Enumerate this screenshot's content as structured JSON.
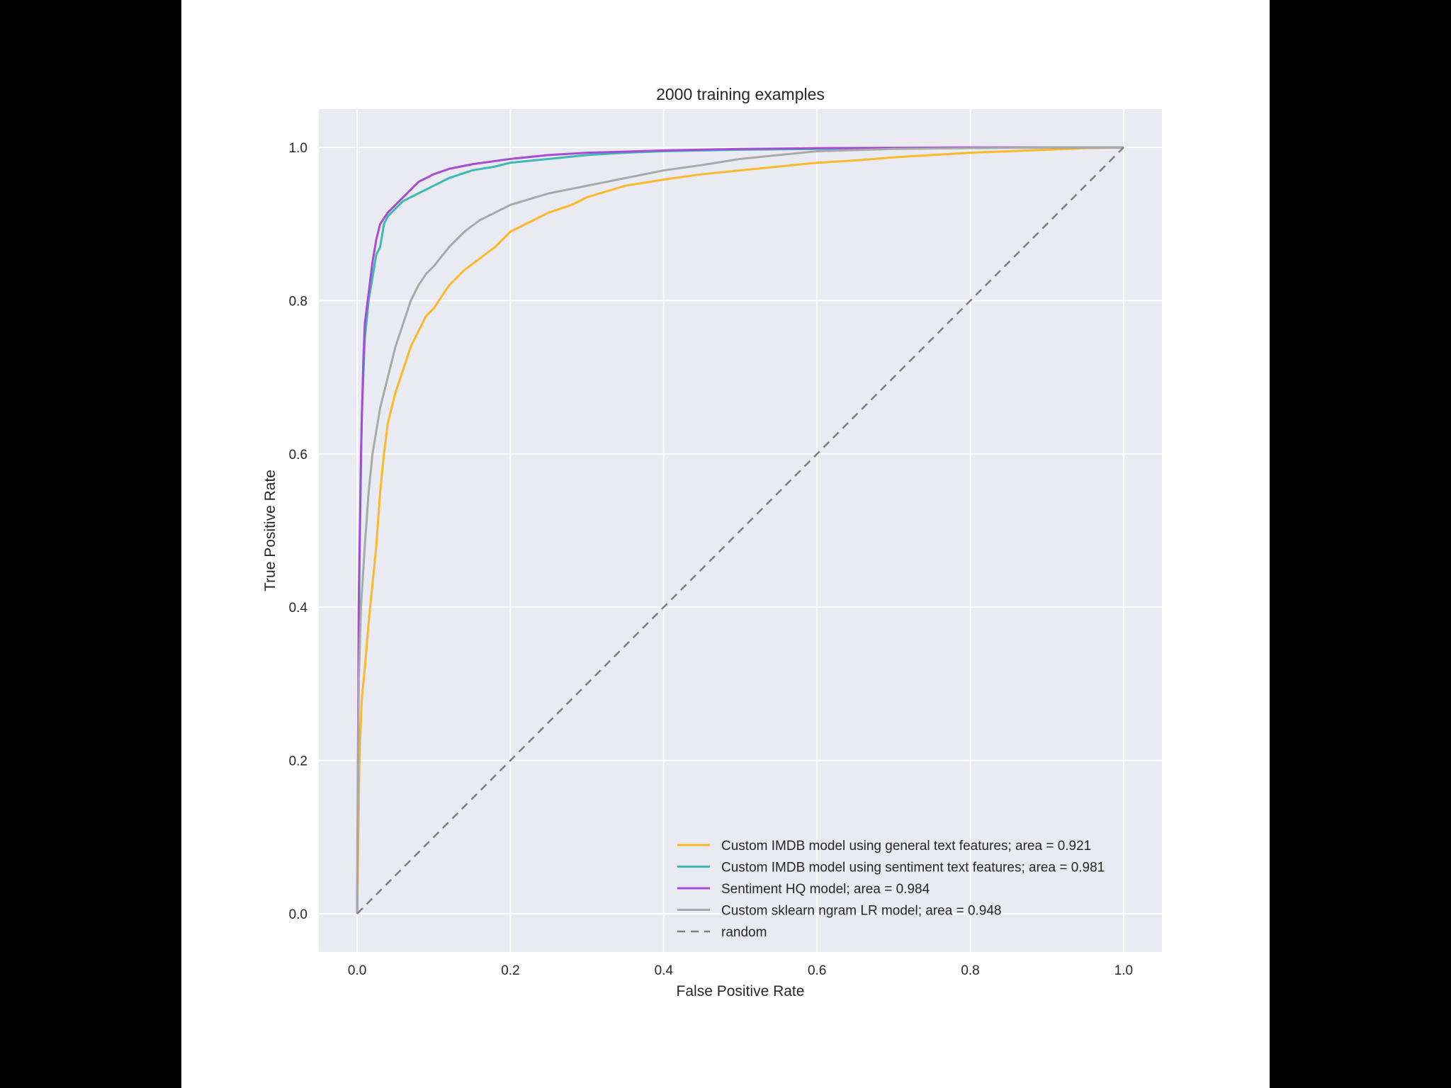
{
  "colors": {
    "page_background": "#000000",
    "figure_background": "#ffffff",
    "plot_background": "#eaeaf2",
    "grid": "#ffffff",
    "text": "#262626"
  },
  "chart_data": {
    "type": "line",
    "title": "2000 training examples",
    "xlabel": "False Positive Rate",
    "ylabel": "True Positive Rate",
    "xlim": [
      -0.05,
      1.05
    ],
    "ylim": [
      -0.05,
      1.05
    ],
    "xticks": [
      "0.0",
      "0.2",
      "0.4",
      "0.6",
      "0.8",
      "1.0"
    ],
    "yticks": [
      "0.0",
      "0.2",
      "0.4",
      "0.6",
      "0.8",
      "1.0"
    ],
    "grid": true,
    "legend_position": "lower-right",
    "series": [
      {
        "name": "Custom IMDB model using general text features; area = 0.921",
        "color": "#fbb829",
        "dash": "solid",
        "x": [
          0,
          0.003,
          0.006,
          0.01,
          0.015,
          0.02,
          0.025,
          0.03,
          0.035,
          0.04,
          0.05,
          0.06,
          0.07,
          0.08,
          0.09,
          0.1,
          0.12,
          0.14,
          0.16,
          0.18,
          0.2,
          0.22,
          0.25,
          0.28,
          0.3,
          0.35,
          0.4,
          0.45,
          0.5,
          0.55,
          0.6,
          0.65,
          0.7,
          0.75,
          0.8,
          0.85,
          0.9,
          0.95,
          1.0
        ],
        "y": [
          0,
          0.2,
          0.28,
          0.32,
          0.38,
          0.43,
          0.48,
          0.55,
          0.6,
          0.64,
          0.68,
          0.71,
          0.74,
          0.76,
          0.78,
          0.79,
          0.82,
          0.84,
          0.855,
          0.87,
          0.89,
          0.9,
          0.915,
          0.925,
          0.935,
          0.95,
          0.958,
          0.965,
          0.97,
          0.975,
          0.98,
          0.983,
          0.987,
          0.99,
          0.993,
          0.995,
          0.997,
          0.999,
          1.0
        ]
      },
      {
        "name": "Custom IMDB model using sentiment text features; area = 0.981",
        "color": "#3dbab2",
        "dash": "solid",
        "x": [
          0,
          0.003,
          0.006,
          0.01,
          0.015,
          0.02,
          0.025,
          0.03,
          0.035,
          0.04,
          0.05,
          0.06,
          0.08,
          0.1,
          0.12,
          0.15,
          0.18,
          0.2,
          0.25,
          0.3,
          0.35,
          0.4,
          0.5,
          0.6,
          0.7,
          0.8,
          0.9,
          1.0
        ],
        "y": [
          0,
          0.45,
          0.65,
          0.75,
          0.8,
          0.83,
          0.86,
          0.87,
          0.9,
          0.91,
          0.92,
          0.93,
          0.94,
          0.95,
          0.96,
          0.97,
          0.975,
          0.98,
          0.985,
          0.99,
          0.993,
          0.995,
          0.997,
          0.998,
          0.999,
          0.9995,
          1.0,
          1.0
        ]
      },
      {
        "name": "Sentiment HQ model; area = 0.984",
        "color": "#a64dd6",
        "dash": "solid",
        "x": [
          0,
          0.002,
          0.005,
          0.008,
          0.01,
          0.015,
          0.02,
          0.025,
          0.03,
          0.04,
          0.05,
          0.06,
          0.07,
          0.08,
          0.1,
          0.12,
          0.15,
          0.2,
          0.25,
          0.3,
          0.4,
          0.5,
          0.6,
          0.7,
          0.8,
          0.9,
          1.0
        ],
        "y": [
          0,
          0.4,
          0.6,
          0.72,
          0.77,
          0.81,
          0.85,
          0.88,
          0.9,
          0.915,
          0.925,
          0.935,
          0.945,
          0.955,
          0.965,
          0.972,
          0.978,
          0.985,
          0.99,
          0.993,
          0.996,
          0.998,
          0.999,
          0.9995,
          1.0,
          1.0,
          1.0
        ]
      },
      {
        "name": "Custom sklearn ngram LR model; area = 0.948",
        "color": "#a9a9a9",
        "dash": "solid",
        "x": [
          0,
          0.002,
          0.005,
          0.01,
          0.015,
          0.02,
          0.025,
          0.03,
          0.04,
          0.05,
          0.06,
          0.07,
          0.08,
          0.09,
          0.1,
          0.12,
          0.14,
          0.16,
          0.18,
          0.2,
          0.25,
          0.3,
          0.35,
          0.4,
          0.45,
          0.5,
          0.55,
          0.6,
          0.7,
          0.8,
          0.9,
          1.0
        ],
        "y": [
          0,
          0.3,
          0.4,
          0.48,
          0.55,
          0.6,
          0.63,
          0.66,
          0.7,
          0.74,
          0.77,
          0.8,
          0.82,
          0.835,
          0.845,
          0.87,
          0.89,
          0.905,
          0.915,
          0.925,
          0.94,
          0.95,
          0.96,
          0.97,
          0.977,
          0.985,
          0.99,
          0.995,
          0.998,
          0.999,
          1.0,
          1.0
        ]
      },
      {
        "name": "random",
        "color": "#7f7f7f",
        "dash": "dashed",
        "x": [
          0,
          1
        ],
        "y": [
          0,
          1
        ]
      }
    ]
  }
}
